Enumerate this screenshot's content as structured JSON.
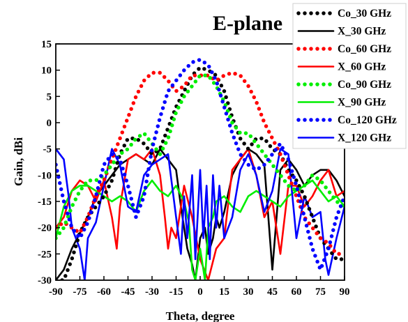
{
  "chart_data": {
    "type": "line",
    "title": "E-plane",
    "xlabel": "Theta, degree",
    "ylabel": "Gain, dBi",
    "xlim": [
      -90,
      90
    ],
    "ylim": [
      -30,
      15
    ],
    "xticks": [
      -90,
      -75,
      -60,
      -45,
      -30,
      -15,
      0,
      15,
      30,
      45,
      60,
      75,
      90
    ],
    "yticks": [
      -30,
      -25,
      -20,
      -15,
      -10,
      -5,
      0,
      5,
      10,
      15
    ],
    "grid": false,
    "legend_position": "top-right",
    "series": [
      {
        "name": "Co_30 GHz",
        "color": "#000000",
        "style": "dotted",
        "x": [
          -90,
          -85,
          -80,
          -75,
          -70,
          -65,
          -60,
          -55,
          -50,
          -45,
          -40,
          -35,
          -30,
          -25,
          -20,
          -15,
          -10,
          -5,
          0,
          5,
          10,
          15,
          20,
          25,
          30,
          35,
          40,
          45,
          50,
          55,
          60,
          65,
          70,
          75,
          80,
          85,
          90
        ],
        "y": [
          -33,
          -30,
          -26,
          -21,
          -18,
          -16,
          -14,
          -11,
          -6,
          -3,
          -3,
          -4,
          -6,
          -5,
          -1,
          3,
          6,
          9,
          10.5,
          10,
          9,
          6,
          1,
          -3,
          -5,
          -3,
          -3,
          -5,
          -6,
          -9,
          -11,
          -14,
          -18,
          -22,
          -24,
          -26,
          -26
        ]
      },
      {
        "name": "X_30 GHz",
        "color": "#000000",
        "style": "solid",
        "x": [
          -90,
          -85,
          -80,
          -75,
          -70,
          -65,
          -60,
          -55,
          -50,
          -45,
          -40,
          -35,
          -30,
          -25,
          -20,
          -15,
          -12,
          -8,
          -5,
          -3,
          0,
          3,
          5,
          8,
          10,
          12,
          15,
          20,
          25,
          30,
          35,
          40,
          45,
          50,
          55,
          60,
          65,
          70,
          75,
          80,
          85,
          90
        ],
        "y": [
          -32,
          -28,
          -24,
          -21,
          -18,
          -14,
          -12,
          -10,
          -8,
          -7,
          -6,
          -7,
          -8,
          -5,
          -7,
          -9,
          -16,
          -24,
          -27,
          -30,
          -22,
          -20,
          -25,
          -22,
          -18,
          -20,
          -17,
          -10,
          -7,
          -5,
          -6,
          -8,
          -28,
          -9,
          -7,
          -9,
          -12,
          -10,
          -9,
          -9,
          -11,
          -14
        ]
      },
      {
        "name": "Co_60 GHz",
        "color": "#ff0000",
        "style": "dotted",
        "x": [
          -90,
          -85,
          -80,
          -75,
          -70,
          -65,
          -60,
          -55,
          -50,
          -45,
          -40,
          -35,
          -30,
          -25,
          -20,
          -15,
          -10,
          -5,
          0,
          5,
          10,
          15,
          20,
          25,
          30,
          35,
          40,
          45,
          50,
          55,
          60,
          65,
          70,
          75,
          80,
          85,
          90
        ],
        "y": [
          -20,
          -19,
          -20,
          -21,
          -18,
          -14,
          -11,
          -7,
          -3,
          1,
          5,
          8,
          9.5,
          9.5,
          8,
          6,
          7,
          9,
          9,
          9,
          8,
          9,
          9.5,
          9,
          7,
          4,
          0,
          -3,
          -6,
          -10,
          -14,
          -18,
          -20,
          -22,
          -23,
          -25,
          -25
        ]
      },
      {
        "name": "X_60 GHz",
        "color": "#ff0000",
        "style": "solid",
        "x": [
          -90,
          -85,
          -80,
          -75,
          -70,
          -65,
          -60,
          -55,
          -52,
          -50,
          -45,
          -40,
          -35,
          -30,
          -25,
          -22,
          -20,
          -18,
          -15,
          -10,
          -5,
          0,
          5,
          10,
          15,
          18,
          20,
          25,
          30,
          35,
          40,
          45,
          50,
          55,
          60,
          65,
          70,
          75,
          80,
          85,
          90
        ],
        "y": [
          -20,
          -18,
          -13,
          -11,
          -12,
          -15,
          -11,
          -18,
          -24,
          -16,
          -7,
          -6,
          -7,
          -5,
          -10,
          -18,
          -24,
          -20,
          -22,
          -12,
          -18,
          -26,
          -30,
          -24,
          -22,
          -14,
          -9,
          -7,
          -5,
          -10,
          -18,
          -15,
          -25,
          -12,
          -12,
          -16,
          -14,
          -11,
          -9,
          -14,
          -13
        ]
      },
      {
        "name": "Co_90 GHz",
        "color": "#00ee00",
        "style": "dotted",
        "x": [
          -90,
          -85,
          -80,
          -75,
          -70,
          -65,
          -60,
          -55,
          -50,
          -45,
          -40,
          -35,
          -30,
          -25,
          -20,
          -15,
          -10,
          -5,
          0,
          5,
          10,
          15,
          20,
          25,
          30,
          35,
          40,
          45,
          50,
          55,
          60,
          65,
          70,
          75,
          80,
          85,
          90
        ],
        "y": [
          -22,
          -20,
          -16,
          -13,
          -11,
          -11,
          -10,
          -8,
          -6,
          -5,
          -3,
          -2,
          -4,
          -6,
          -3,
          2,
          5,
          7,
          9,
          9,
          7,
          4,
          0,
          -2,
          -2,
          -4,
          -6,
          -8,
          -10,
          -12,
          -13,
          -12,
          -10,
          -11,
          -13,
          -15,
          -16
        ]
      },
      {
        "name": "X_90 GHz",
        "color": "#00ee00",
        "style": "solid",
        "x": [
          -90,
          -85,
          -80,
          -75,
          -70,
          -65,
          -60,
          -55,
          -50,
          -45,
          -40,
          -35,
          -30,
          -25,
          -20,
          -15,
          -10,
          -7,
          -5,
          -3,
          0,
          3,
          5,
          8,
          10,
          15,
          20,
          25,
          30,
          35,
          40,
          45,
          50,
          55,
          60,
          65,
          70,
          75,
          80,
          85,
          90
        ],
        "y": [
          -22,
          -16,
          -13,
          -12,
          -12,
          -13,
          -14,
          -15,
          -14,
          -15,
          -17,
          -13,
          -11,
          -13,
          -14,
          -12,
          -15,
          -19,
          -28,
          -30,
          -24,
          -30,
          -20,
          -18,
          -15,
          -14,
          -16,
          -17,
          -14,
          -13,
          -14,
          -15,
          -16,
          -14,
          -13,
          -12,
          -11,
          -13,
          -15,
          -14,
          -16
        ]
      },
      {
        "name": "Co_120 GHz",
        "color": "#0000ff",
        "style": "dotted",
        "x": [
          -90,
          -85,
          -80,
          -75,
          -70,
          -65,
          -60,
          -55,
          -50,
          -45,
          -40,
          -35,
          -30,
          -25,
          -20,
          -15,
          -10,
          -5,
          0,
          5,
          10,
          15,
          20,
          25,
          30,
          35,
          40,
          45,
          50,
          55,
          60,
          65,
          70,
          75,
          80,
          85,
          90
        ],
        "y": [
          -8,
          -15,
          -20,
          -22,
          -19,
          -14,
          -8,
          -6,
          -7,
          -12,
          -18,
          -14,
          -5,
          1,
          6,
          8,
          10,
          11.5,
          12,
          11,
          8,
          3,
          -2,
          -6,
          -8,
          -9,
          -8,
          -6,
          -4,
          -7,
          -12,
          -18,
          -24,
          -28,
          -24,
          -18,
          -14
        ]
      },
      {
        "name": "X_120 GHz",
        "color": "#0000ff",
        "style": "solid",
        "x": [
          -90,
          -85,
          -82,
          -80,
          -75,
          -72,
          -70,
          -65,
          -60,
          -55,
          -50,
          -45,
          -40,
          -35,
          -30,
          -25,
          -20,
          -15,
          -12,
          -10,
          -8,
          -5,
          -3,
          0,
          2,
          4,
          6,
          8,
          10,
          12,
          15,
          20,
          25,
          30,
          35,
          40,
          45,
          50,
          55,
          60,
          65,
          70,
          75,
          78,
          80,
          85,
          90
        ],
        "y": [
          -5,
          -7,
          -14,
          -20,
          -24,
          -30,
          -22,
          -19,
          -12,
          -5,
          -8,
          -16,
          -17,
          -10,
          -8,
          -7,
          -6,
          -18,
          -25,
          -14,
          -22,
          -10,
          -26,
          -9,
          -22,
          -12,
          -26,
          -10,
          -20,
          -12,
          -22,
          -18,
          -9,
          -6,
          -10,
          -17,
          -13,
          -5,
          -6,
          -22,
          -14,
          -18,
          -17,
          -26,
          -29,
          -22,
          -16
        ]
      }
    ]
  }
}
